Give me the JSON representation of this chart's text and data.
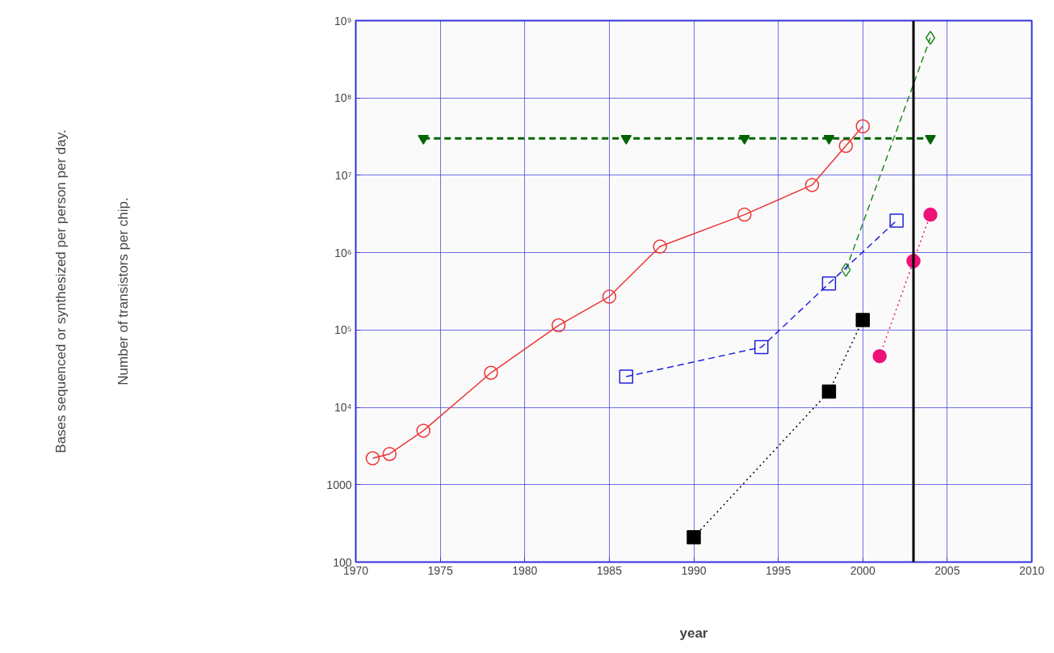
{
  "chart_data": {
    "type": "line",
    "xlabel": "year",
    "annotations": [
      "Bases sequenced or synthesized per person per day.",
      "Number of transistors per chip."
    ],
    "log": "y",
    "grid": true,
    "xlim": [
      1970,
      2010
    ],
    "xticks": [
      1970,
      1975,
      1980,
      1985,
      1990,
      1995,
      2000,
      2005,
      2010
    ],
    "ylim": [
      100,
      1000000000
    ],
    "yticks": [
      100,
      1000,
      {
        "value": 10000,
        "label": "10⁴"
      },
      {
        "value": 100000,
        "label": "10⁵"
      },
      {
        "value": 1000000,
        "label": "10⁶"
      },
      {
        "value": 10000000,
        "label": "10⁷"
      },
      {
        "value": 100000000,
        "label": "10⁸"
      },
      {
        "value": 1000000000,
        "label": "10⁹"
      }
    ],
    "ref_lines": [
      {
        "axis": "x",
        "value": 2003,
        "color": "#000000"
      }
    ],
    "series": [
      {
        "color": "#ee3333",
        "marker": "circle",
        "line_style": "solid",
        "x": [
          1971,
          1972,
          1974,
          1978,
          1982,
          1985,
          1988,
          1993,
          1997,
          1999,
          2000
        ],
        "values": [
          2200,
          2500,
          5000,
          28000,
          115000,
          270000,
          1200000,
          3100000,
          7500000,
          24000000,
          43000000
        ]
      },
      {
        "color": "#006400",
        "marker": "triangle",
        "line_style": "dashed",
        "x": [
          1974,
          1986,
          1993,
          1998,
          2004
        ],
        "values": [
          30000000,
          30000000,
          30000000,
          30000000,
          30000000
        ]
      },
      {
        "color": "#228b22",
        "marker": "diamond",
        "line_style": "dashed",
        "x": [
          1999,
          2004
        ],
        "values": [
          600000,
          600000000
        ]
      },
      {
        "color": "#2222dd",
        "marker": "square",
        "line_style": "dashed",
        "x": [
          1986,
          1994,
          1998,
          2002
        ],
        "values": [
          25000,
          60000,
          400000,
          2600000
        ]
      },
      {
        "color": "#000000",
        "marker": "square",
        "line_style": "dotted",
        "x": [
          1990,
          1998,
          2000
        ],
        "values": [
          210,
          16000,
          135000
        ]
      },
      {
        "color": "#ee1177",
        "marker": "circle",
        "line_style": "dotted",
        "x": [
          2001,
          2003,
          2004
        ],
        "values": [
          46000,
          780000,
          3100000
        ]
      }
    ]
  }
}
